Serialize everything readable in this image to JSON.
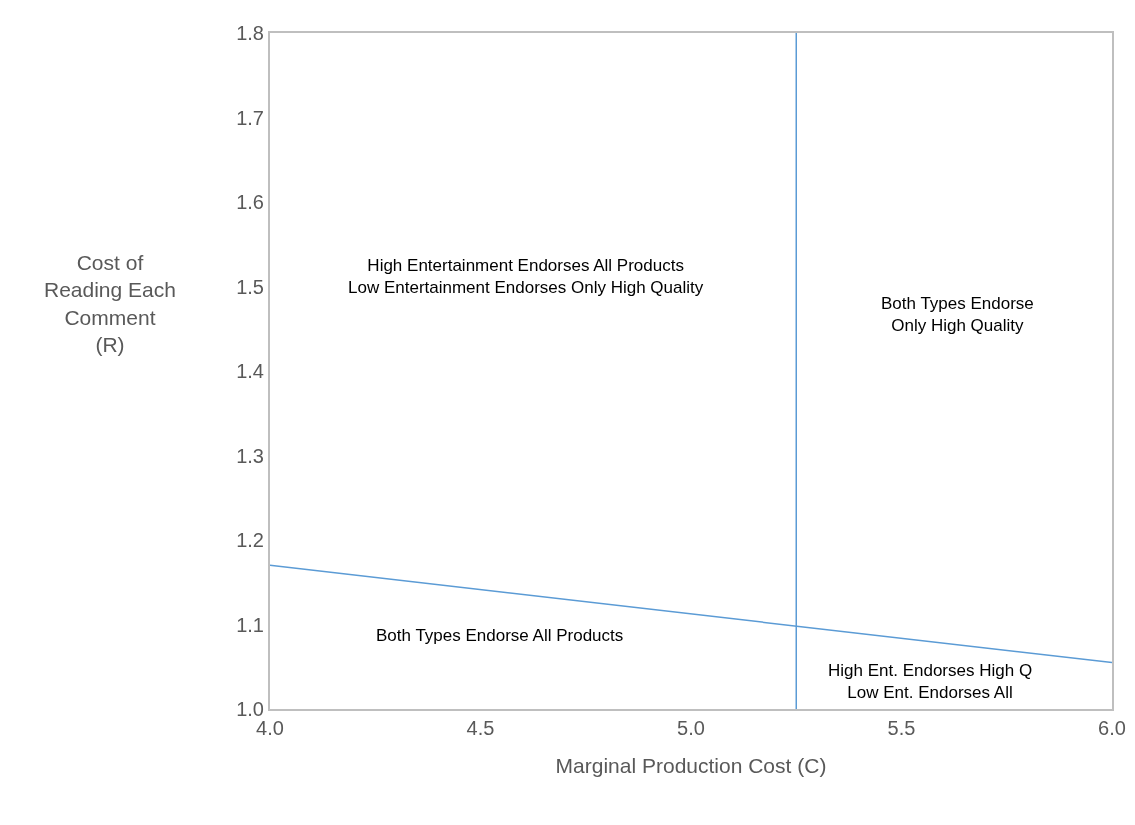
{
  "chart_data": {
    "type": "line",
    "xlabel": "Marginal Production Cost (C)",
    "ylabel": "Cost of\nReading Each\nComment\n(R)",
    "x": [
      4.0,
      6.0
    ],
    "series": [
      {
        "color": "#5b9bd5",
        "values": [
          1.17,
          1.055
        ]
      }
    ],
    "ref_lines": [
      {
        "axis": "x",
        "value": 5.25,
        "color": "#5b9bd5"
      }
    ],
    "xlim": [
      4.0,
      6.0
    ],
    "xticks": [
      {
        "value": 4.0,
        "label": "4.0"
      },
      {
        "value": 4.5,
        "label": "4.5"
      },
      {
        "value": 5.0,
        "label": "5.0"
      },
      {
        "value": 5.5,
        "label": "5.5"
      },
      {
        "value": 6.0,
        "label": "6.0"
      }
    ],
    "ylim": [
      1.0,
      1.8
    ],
    "yticks": [
      {
        "value": 1.0,
        "label": "1.0"
      },
      {
        "value": 1.1,
        "label": "1.1"
      },
      {
        "value": 1.2,
        "label": "1.2"
      },
      {
        "value": 1.3,
        "label": "1.3"
      },
      {
        "value": 1.4,
        "label": "1.4"
      },
      {
        "value": 1.5,
        "label": "1.5"
      },
      {
        "value": 1.6,
        "label": "1.6"
      },
      {
        "value": 1.7,
        "label": "1.7"
      },
      {
        "value": 1.8,
        "label": "1.8"
      }
    ],
    "grid": false,
    "marker": "none",
    "line_style": "solid",
    "annotations": [
      "High Entertainment Endorses All Products\nLow Entertainment Endorses Only High Quality",
      "Both Types Endorse\nOnly High Quality",
      "Both Types Endorse All Products",
      "High Ent. Endorses High Q\nLow Ent. Endorses All"
    ]
  }
}
